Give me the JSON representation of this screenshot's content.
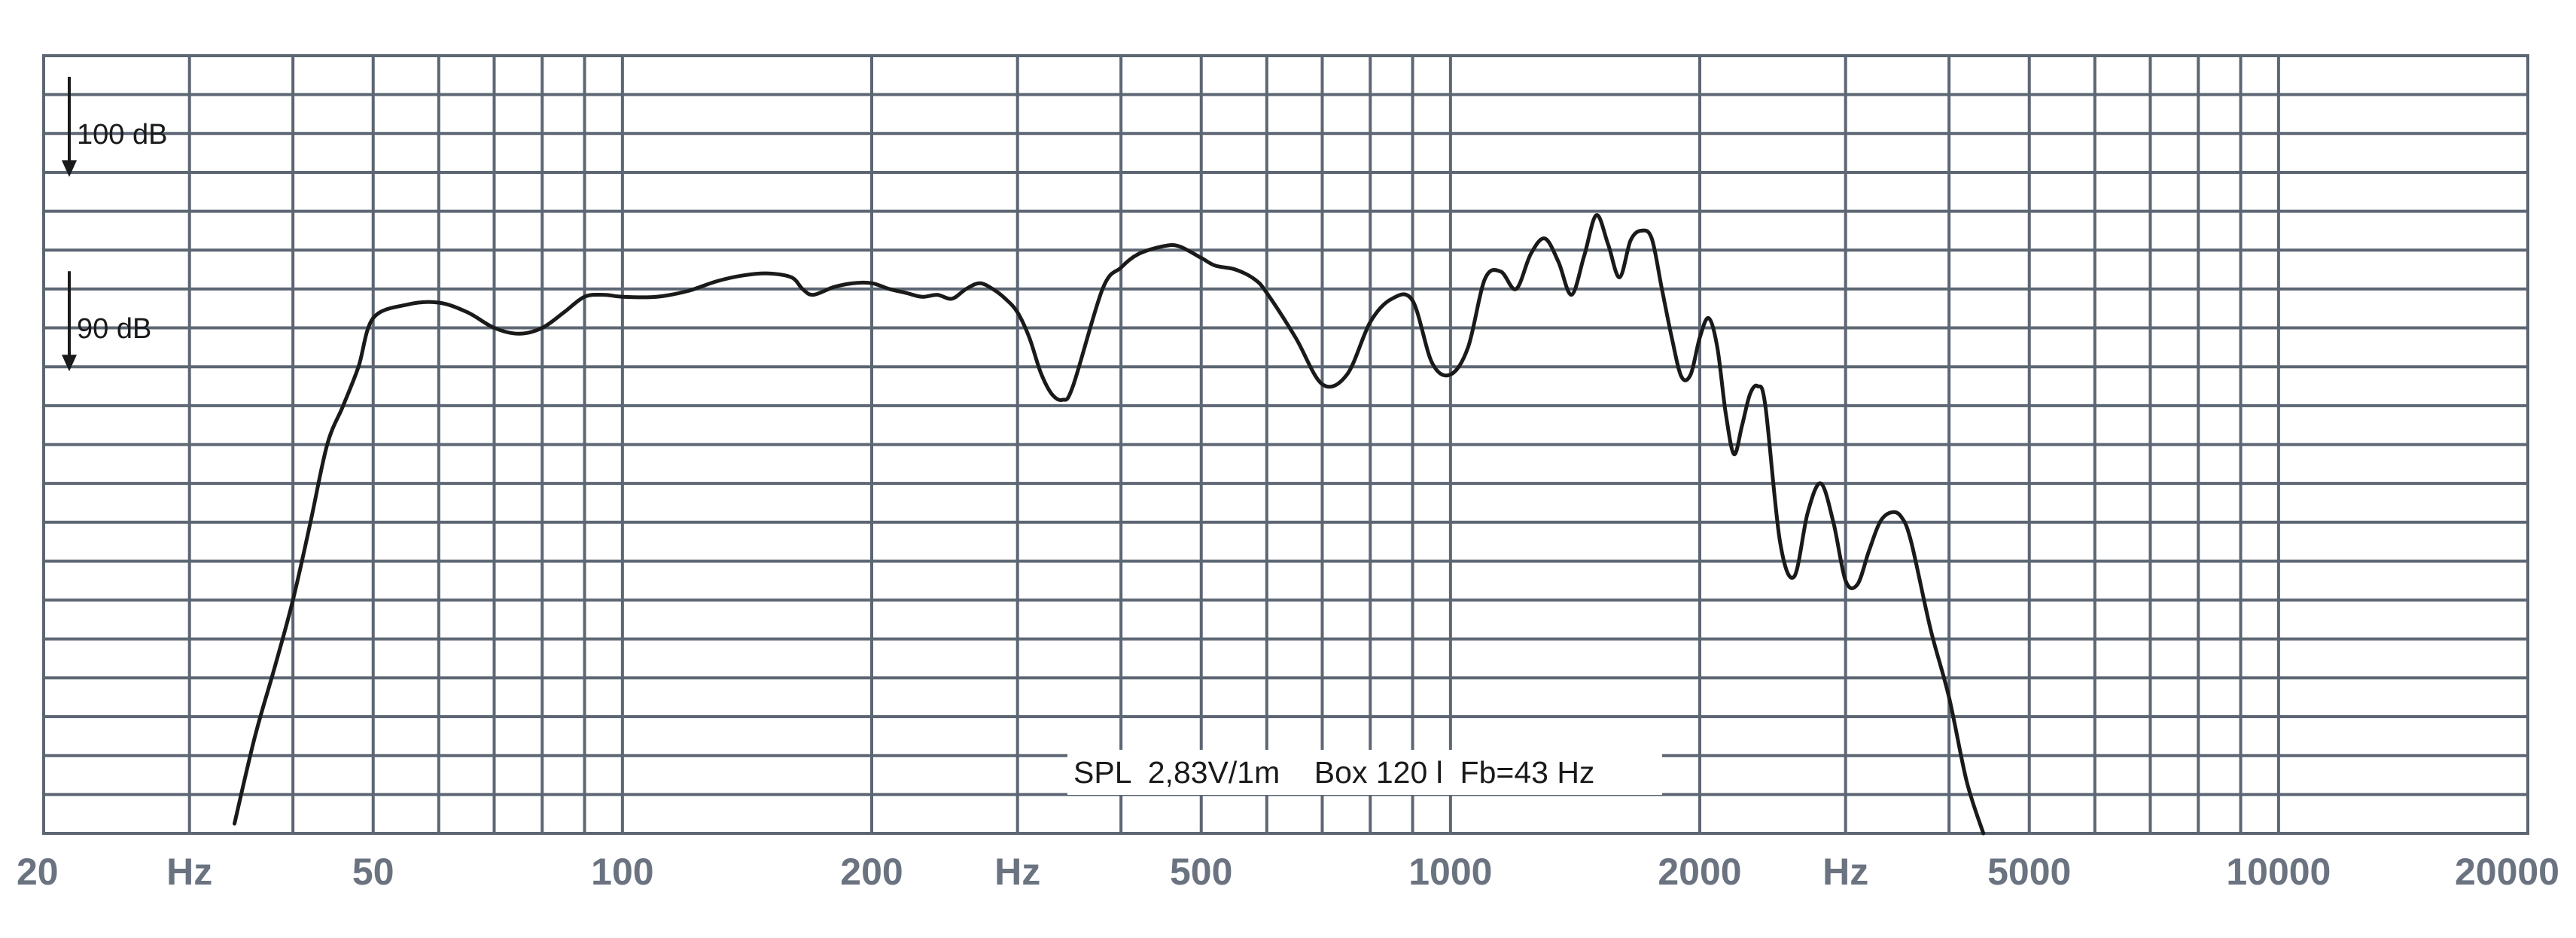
{
  "chart_data": {
    "type": "line",
    "title": "",
    "xlabel": "",
    "ylabel": "",
    "x_scale": "log",
    "xlim": [
      20,
      20000
    ],
    "ylim": [
      66,
      106
    ],
    "grid": true,
    "x_tick_labels": [
      "20",
      "Hz",
      "50",
      "100",
      "200",
      "Hz",
      "500",
      "1000",
      "2000",
      "Hz",
      "5000",
      "10000",
      "20000"
    ],
    "reference_levels": [
      {
        "label": "100 dB",
        "value": 100
      },
      {
        "label": "90 dB",
        "value": 90
      }
    ],
    "annotation": "SPL  2,83V/1m    Box 120 l  Fb=43 Hz",
    "series": [
      {
        "x": [
          34,
          36,
          38,
          40,
          42,
          44,
          46,
          48,
          50,
          55,
          60,
          65,
          70,
          75,
          80,
          85,
          90,
          95,
          100,
          110,
          120,
          130,
          140,
          150,
          160,
          165,
          170,
          180,
          190,
          200,
          210,
          220,
          230,
          240,
          250,
          260,
          270,
          280,
          290,
          300,
          310,
          320,
          330,
          340,
          350,
          380,
          400,
          420,
          450,
          470,
          500,
          520,
          550,
          580,
          600,
          650,
          700,
          750,
          800,
          850,
          900,
          950,
          1000,
          1050,
          1100,
          1150,
          1200,
          1250,
          1300,
          1350,
          1400,
          1450,
          1500,
          1550,
          1600,
          1650,
          1700,
          1750,
          1800,
          1850,
          1900,
          1950,
          2000,
          2050,
          2100,
          2150,
          2200,
          2250,
          2300,
          2350,
          2400,
          2500,
          2600,
          2700,
          2800,
          2900,
          3000,
          3100,
          3200,
          3300,
          3400,
          3500,
          3600,
          3800,
          4000,
          4200,
          4400
        ],
        "y": [
          66.5,
          71,
          74.5,
          78,
          82,
          86,
          88,
          90,
          92.5,
          93.2,
          93.3,
          92.8,
          92,
          91.7,
          92,
          92.8,
          93.6,
          93.7,
          93.6,
          93.6,
          93.9,
          94.4,
          94.7,
          94.8,
          94.6,
          94.0,
          93.7,
          94.1,
          94.3,
          94.3,
          94.0,
          93.8,
          93.6,
          93.7,
          93.5,
          94.0,
          94.3,
          94.0,
          93.5,
          92.8,
          91.5,
          89.7,
          88.6,
          88.3,
          89,
          94.0,
          95.1,
          95.8,
          96.2,
          96.2,
          95.6,
          95.2,
          95.0,
          94.5,
          93.8,
          91.5,
          89.1,
          89.6,
          92.3,
          93.5,
          93.4,
          90.2,
          89.6,
          91.0,
          94.5,
          94.9,
          94.0,
          95.8,
          96.6,
          95.4,
          93.7,
          95.7,
          97.8,
          96.3,
          94.6,
          96.5,
          97.0,
          96.6,
          94.0,
          91.5,
          89.5,
          89.6,
          91.5,
          92.5,
          91.0,
          87.6,
          85.5,
          87.0,
          88.6,
          89.0,
          88.0,
          81.0,
          79.2,
          82.5,
          84.0,
          82.0,
          79.0,
          78.8,
          80.5,
          82.0,
          82.5,
          82.3,
          81.0,
          76.5,
          73.0,
          68.7,
          66.0
        ]
      }
    ]
  }
}
